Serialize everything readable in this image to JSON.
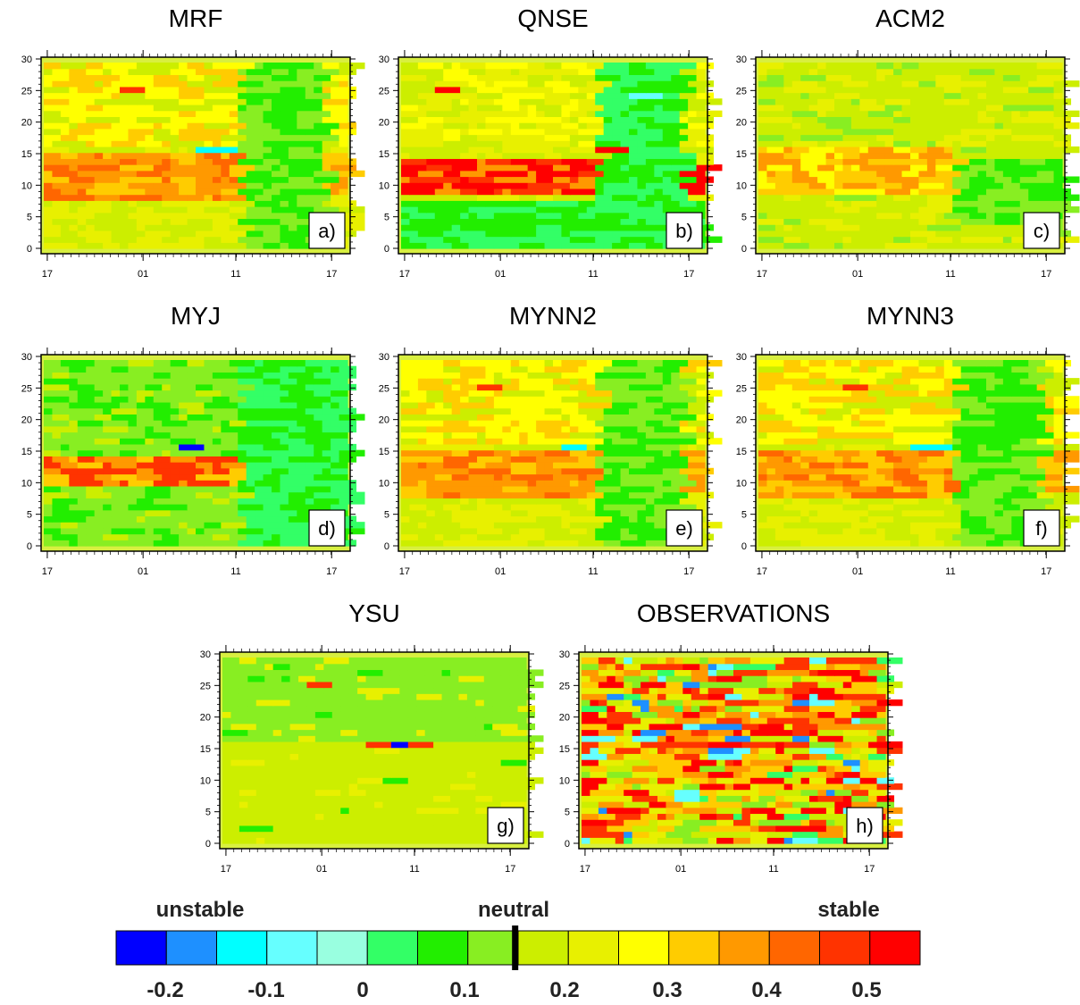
{
  "chart_data": [
    {
      "type": "heatmap",
      "title": "MRF",
      "panel_label": "a)",
      "yticks": [
        "0",
        "5",
        "10",
        "15",
        "20",
        "25",
        "30"
      ],
      "xticks": [
        "17",
        "01",
        "11",
        "17"
      ],
      "ylim": [
        0,
        30
      ],
      "character": "warm"
    },
    {
      "type": "heatmap",
      "title": "QNSE",
      "panel_label": "b)",
      "yticks": [
        "0",
        "5",
        "10",
        "15",
        "20",
        "25",
        "30"
      ],
      "xticks": [
        "17",
        "01",
        "11",
        "17"
      ],
      "ylim": [
        0,
        30
      ],
      "character": "strong"
    },
    {
      "type": "heatmap",
      "title": "ACM2",
      "panel_label": "c)",
      "yticks": [
        "0",
        "5",
        "10",
        "15",
        "20",
        "25",
        "30"
      ],
      "xticks": [
        "17",
        "01",
        "11",
        "17"
      ],
      "ylim": [
        0,
        30
      ],
      "character": "mild"
    },
    {
      "type": "heatmap",
      "title": "MYJ",
      "panel_label": "d)",
      "yticks": [
        "0",
        "5",
        "10",
        "15",
        "20",
        "25",
        "30"
      ],
      "xticks": [
        "17",
        "01",
        "11",
        "17"
      ],
      "ylim": [
        0,
        30
      ],
      "character": "green"
    },
    {
      "type": "heatmap",
      "title": "MYNN2",
      "panel_label": "e)",
      "yticks": [
        "0",
        "5",
        "10",
        "15",
        "20",
        "25",
        "30"
      ],
      "xticks": [
        "17",
        "01",
        "11",
        "17"
      ],
      "ylim": [
        0,
        30
      ],
      "character": "warm"
    },
    {
      "type": "heatmap",
      "title": "MYNN3",
      "panel_label": "f)",
      "yticks": [
        "0",
        "5",
        "10",
        "15",
        "20",
        "25",
        "30"
      ],
      "xticks": [
        "17",
        "01",
        "11",
        "17"
      ],
      "ylim": [
        0,
        30
      ],
      "character": "warm"
    },
    {
      "type": "heatmap",
      "title": "YSU",
      "panel_label": "g)",
      "yticks": [
        "0",
        "5",
        "10",
        "15",
        "20",
        "25",
        "30"
      ],
      "xticks": [
        "17",
        "01",
        "11",
        "17"
      ],
      "ylim": [
        0,
        30
      ],
      "character": "flat"
    },
    {
      "type": "heatmap",
      "title": "OBSERVATIONS",
      "panel_label": "h)",
      "yticks": [
        "0",
        "5",
        "10",
        "15",
        "20",
        "25",
        "30"
      ],
      "xticks": [
        "17",
        "01",
        "11",
        "17"
      ],
      "ylim": [
        0,
        30
      ],
      "character": "noisy"
    }
  ],
  "colorbar": {
    "labels": {
      "left": "unstable",
      "middle": "neutral",
      "right": "stable"
    },
    "ticks": [
      "-0.2",
      "-0.1",
      "0",
      "0.1",
      "0.2",
      "0.3",
      "0.4",
      "0.5"
    ],
    "colors": [
      "#0000ff",
      "#1e90ff",
      "#00ffff",
      "#66ffff",
      "#99ffe0",
      "#33ff66",
      "#22ee00",
      "#88ee22",
      "#ccee00",
      "#e8f000",
      "#ffff00",
      "#ffcc00",
      "#ff9900",
      "#ff6600",
      "#ff3300",
      "#ff0000"
    ],
    "neutral_marker_index": 8
  }
}
